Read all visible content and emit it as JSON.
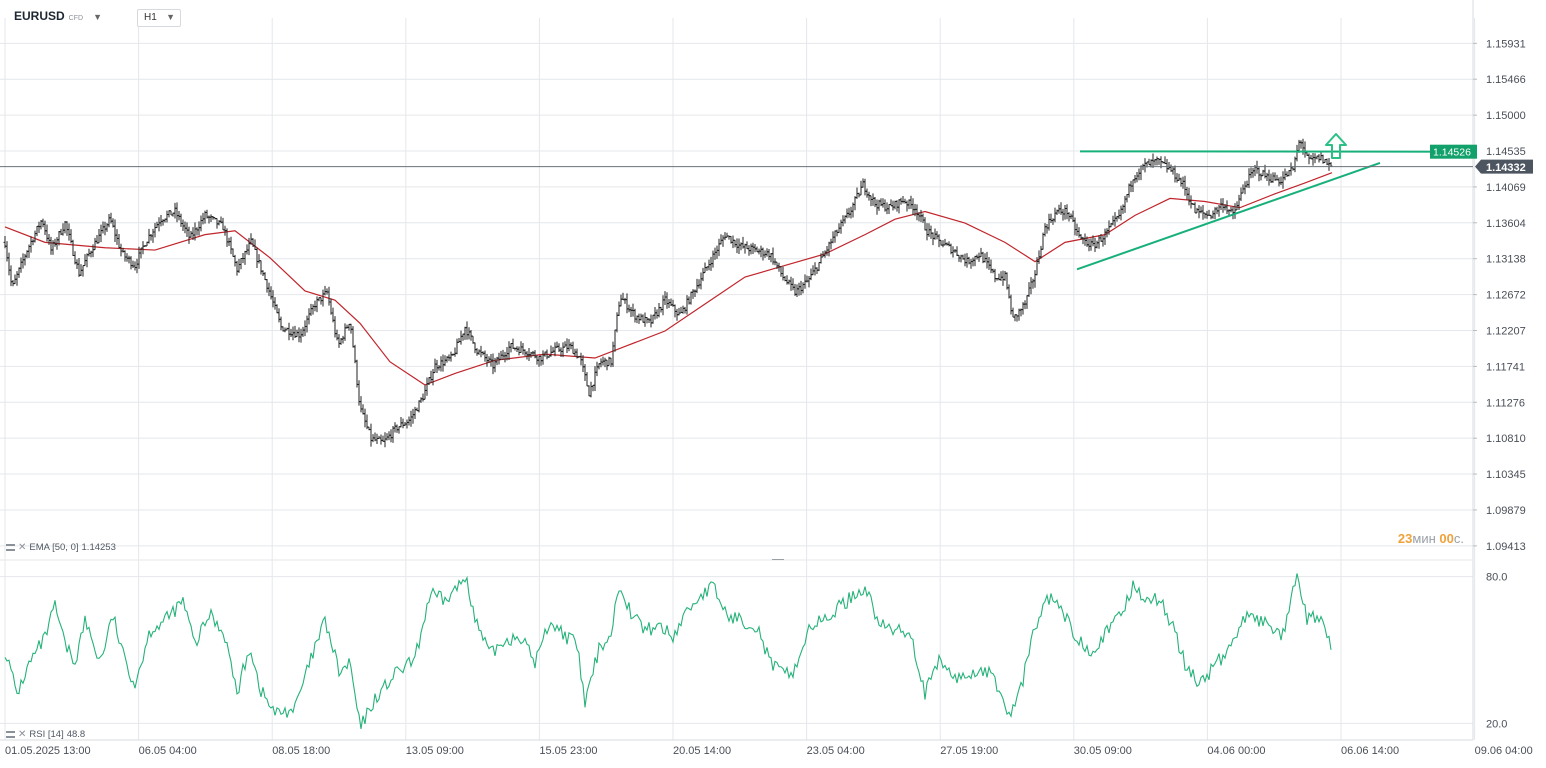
{
  "toolbar": {
    "symbol": "EURUSD",
    "symbol_type": "CFD",
    "timeframe": "H1"
  },
  "indicators": {
    "ema_label": "EMA [50, 0]",
    "ema_value": "1.14253",
    "rsi_label": "RSI [14]",
    "rsi_value": "48.8"
  },
  "countdown": {
    "minutes": "23",
    "min_unit": "мин",
    "seconds": "00",
    "sec_unit": "с."
  },
  "colors": {
    "candle": "#222222",
    "ema": "#c0252b",
    "rsi": "#26b27a",
    "trendline": "#18b07a",
    "arrow": "#2bbf86",
    "badge_resistance": "#12a06b",
    "badge_price": "#4d5561",
    "grid": "#e4e7eb",
    "axis_text": "#4a4f57"
  },
  "icons": {
    "indicator_settings": "indicator-settings-icon",
    "remove_indicator": "remove-indicator-icon",
    "bullish_arrow": "up-arrow-icon"
  },
  "chart_data": [
    {
      "type": "candlestick",
      "title": "EURUSD CFD H1",
      "x_ticks": [
        "01.05.2025 13:00",
        "06.05 04:00",
        "08.05 18:00",
        "13.05 09:00",
        "15.05 23:00",
        "20.05 14:00",
        "23.05 04:00",
        "27.05 19:00",
        "30.05 09:00",
        "04.06 00:00",
        "06.06 14:00",
        "09.06 04:00"
      ],
      "y_ticks": [
        "1.15931",
        "1.15466",
        "1.15000",
        "1.14535",
        "1.14069",
        "1.13604",
        "1.13138",
        "1.12672",
        "1.12207",
        "1.11741",
        "1.11276",
        "1.10810",
        "1.10345",
        "1.09879",
        "1.09413"
      ],
      "ylim": [
        1.0923,
        1.1626
      ],
      "close_path": [
        {
          "t": 0,
          "v": 1.1335
        },
        {
          "t": 7,
          "v": 1.1275
        },
        {
          "t": 22,
          "v": 1.1325
        },
        {
          "t": 37,
          "v": 1.1365
        },
        {
          "t": 46,
          "v": 1.1325
        },
        {
          "t": 60,
          "v": 1.136
        },
        {
          "t": 74,
          "v": 1.1295
        },
        {
          "t": 88,
          "v": 1.133
        },
        {
          "t": 105,
          "v": 1.1365
        },
        {
          "t": 117,
          "v": 1.132
        },
        {
          "t": 130,
          "v": 1.1305
        },
        {
          "t": 140,
          "v": 1.1335
        },
        {
          "t": 155,
          "v": 1.1365
        },
        {
          "t": 170,
          "v": 1.1375
        },
        {
          "t": 185,
          "v": 1.134
        },
        {
          "t": 200,
          "v": 1.137
        },
        {
          "t": 218,
          "v": 1.1355
        },
        {
          "t": 232,
          "v": 1.13
        },
        {
          "t": 246,
          "v": 1.1335
        },
        {
          "t": 262,
          "v": 1.128
        },
        {
          "t": 276,
          "v": 1.1225
        },
        {
          "t": 295,
          "v": 1.1215
        },
        {
          "t": 310,
          "v": 1.1255
        },
        {
          "t": 322,
          "v": 1.127
        },
        {
          "t": 333,
          "v": 1.12
        },
        {
          "t": 345,
          "v": 1.1235
        },
        {
          "t": 355,
          "v": 1.112
        },
        {
          "t": 366,
          "v": 1.108
        },
        {
          "t": 378,
          "v": 1.1075
        },
        {
          "t": 392,
          "v": 1.1095
        },
        {
          "t": 405,
          "v": 1.1105
        },
        {
          "t": 418,
          "v": 1.1135
        },
        {
          "t": 430,
          "v": 1.1175
        },
        {
          "t": 447,
          "v": 1.1185
        },
        {
          "t": 460,
          "v": 1.1225
        },
        {
          "t": 472,
          "v": 1.1195
        },
        {
          "t": 488,
          "v": 1.1175
        },
        {
          "t": 505,
          "v": 1.12
        },
        {
          "t": 520,
          "v": 1.1195
        },
        {
          "t": 535,
          "v": 1.1185
        },
        {
          "t": 550,
          "v": 1.1195
        },
        {
          "t": 565,
          "v": 1.12
        },
        {
          "t": 575,
          "v": 1.1185
        },
        {
          "t": 584,
          "v": 1.114
        },
        {
          "t": 595,
          "v": 1.118
        },
        {
          "t": 606,
          "v": 1.118
        },
        {
          "t": 615,
          "v": 1.1265
        },
        {
          "t": 630,
          "v": 1.124
        },
        {
          "t": 645,
          "v": 1.123
        },
        {
          "t": 660,
          "v": 1.126
        },
        {
          "t": 675,
          "v": 1.124
        },
        {
          "t": 690,
          "v": 1.1275
        },
        {
          "t": 705,
          "v": 1.131
        },
        {
          "t": 720,
          "v": 1.1345
        },
        {
          "t": 735,
          "v": 1.133
        },
        {
          "t": 750,
          "v": 1.1325
        },
        {
          "t": 765,
          "v": 1.132
        },
        {
          "t": 778,
          "v": 1.129
        },
        {
          "t": 790,
          "v": 1.127
        },
        {
          "t": 803,
          "v": 1.1285
        },
        {
          "t": 815,
          "v": 1.131
        },
        {
          "t": 830,
          "v": 1.1345
        },
        {
          "t": 845,
          "v": 1.1375
        },
        {
          "t": 858,
          "v": 1.141
        },
        {
          "t": 870,
          "v": 1.1385
        },
        {
          "t": 885,
          "v": 1.138
        },
        {
          "t": 898,
          "v": 1.139
        },
        {
          "t": 910,
          "v": 1.138
        },
        {
          "t": 922,
          "v": 1.135
        },
        {
          "t": 935,
          "v": 1.1335
        },
        {
          "t": 948,
          "v": 1.1325
        },
        {
          "t": 962,
          "v": 1.131
        },
        {
          "t": 975,
          "v": 1.132
        },
        {
          "t": 990,
          "v": 1.129
        },
        {
          "t": 1000,
          "v": 1.129
        },
        {
          "t": 1008,
          "v": 1.1235
        },
        {
          "t": 1020,
          "v": 1.1255
        },
        {
          "t": 1030,
          "v": 1.1295
        },
        {
          "t": 1040,
          "v": 1.1355
        },
        {
          "t": 1052,
          "v": 1.1375
        },
        {
          "t": 1062,
          "v": 1.1375
        },
        {
          "t": 1075,
          "v": 1.134
        },
        {
          "t": 1088,
          "v": 1.133
        },
        {
          "t": 1100,
          "v": 1.1345
        },
        {
          "t": 1115,
          "v": 1.137
        },
        {
          "t": 1128,
          "v": 1.142
        },
        {
          "t": 1140,
          "v": 1.1435
        },
        {
          "t": 1152,
          "v": 1.144
        },
        {
          "t": 1165,
          "v": 1.143
        },
        {
          "t": 1178,
          "v": 1.141
        },
        {
          "t": 1190,
          "v": 1.1375
        },
        {
          "t": 1205,
          "v": 1.137
        },
        {
          "t": 1218,
          "v": 1.1385
        },
        {
          "t": 1228,
          "v": 1.137
        },
        {
          "t": 1240,
          "v": 1.141
        },
        {
          "t": 1250,
          "v": 1.143
        },
        {
          "t": 1262,
          "v": 1.142
        },
        {
          "t": 1275,
          "v": 1.1415
        },
        {
          "t": 1288,
          "v": 1.143
        },
        {
          "t": 1295,
          "v": 1.147
        },
        {
          "t": 1303,
          "v": 1.144
        },
        {
          "t": 1315,
          "v": 1.1445
        },
        {
          "t": 1327,
          "v": 1.1433
        }
      ],
      "ema": {
        "name": "EMA [50, 0]",
        "last": 1.14253,
        "path": [
          {
            "t": 0,
            "v": 1.1355
          },
          {
            "t": 40,
            "v": 1.1335
          },
          {
            "t": 100,
            "v": 1.1328
          },
          {
            "t": 150,
            "v": 1.1325
          },
          {
            "t": 200,
            "v": 1.1345
          },
          {
            "t": 230,
            "v": 1.135
          },
          {
            "t": 265,
            "v": 1.1315
          },
          {
            "t": 300,
            "v": 1.1272
          },
          {
            "t": 330,
            "v": 1.126
          },
          {
            "t": 355,
            "v": 1.123
          },
          {
            "t": 385,
            "v": 1.118
          },
          {
            "t": 420,
            "v": 1.115
          },
          {
            "t": 450,
            "v": 1.1165
          },
          {
            "t": 490,
            "v": 1.1182
          },
          {
            "t": 540,
            "v": 1.119
          },
          {
            "t": 590,
            "v": 1.1185
          },
          {
            "t": 620,
            "v": 1.12
          },
          {
            "t": 660,
            "v": 1.122
          },
          {
            "t": 700,
            "v": 1.1255
          },
          {
            "t": 740,
            "v": 1.129
          },
          {
            "t": 780,
            "v": 1.1305
          },
          {
            "t": 820,
            "v": 1.132
          },
          {
            "t": 860,
            "v": 1.1345
          },
          {
            "t": 890,
            "v": 1.1365
          },
          {
            "t": 920,
            "v": 1.1375
          },
          {
            "t": 960,
            "v": 1.136
          },
          {
            "t": 1000,
            "v": 1.1335
          },
          {
            "t": 1030,
            "v": 1.131
          },
          {
            "t": 1060,
            "v": 1.1335
          },
          {
            "t": 1100,
            "v": 1.1345
          },
          {
            "t": 1130,
            "v": 1.137
          },
          {
            "t": 1165,
            "v": 1.1392
          },
          {
            "t": 1200,
            "v": 1.1388
          },
          {
            "t": 1235,
            "v": 1.138
          },
          {
            "t": 1270,
            "v": 1.1398
          },
          {
            "t": 1300,
            "v": 1.1412
          },
          {
            "t": 1327,
            "v": 1.14253
          }
        ]
      },
      "resistance_line": {
        "start": {
          "t": 1075,
          "v": 1.1453
        },
        "end": {
          "t": 1455,
          "v": 1.14526
        },
        "label": "1.14526"
      },
      "support_line": {
        "start": {
          "t": 1072,
          "v": 1.13
        },
        "end": {
          "t": 1375,
          "v": 1.1438
        }
      },
      "current_price": {
        "value": 1.14332,
        "label": "1.14332"
      },
      "arrow_direction": "up"
    },
    {
      "type": "line",
      "title": "RSI [14]",
      "y_ticks": [
        "80.0",
        "20.0"
      ],
      "ylim": [
        14.0,
        86.0
      ],
      "last": 48.8,
      "series": [
        {
          "name": "RSI [14]",
          "path": [
            {
              "t": 0,
              "v": 50
            },
            {
              "t": 12,
              "v": 32
            },
            {
              "t": 25,
              "v": 45
            },
            {
              "t": 40,
              "v": 55
            },
            {
              "t": 50,
              "v": 68
            },
            {
              "t": 60,
              "v": 52
            },
            {
              "t": 70,
              "v": 45
            },
            {
              "t": 80,
              "v": 62
            },
            {
              "t": 95,
              "v": 45
            },
            {
              "t": 108,
              "v": 64
            },
            {
              "t": 118,
              "v": 48
            },
            {
              "t": 130,
              "v": 36
            },
            {
              "t": 145,
              "v": 58
            },
            {
              "t": 160,
              "v": 62
            },
            {
              "t": 178,
              "v": 70
            },
            {
              "t": 190,
              "v": 52
            },
            {
              "t": 205,
              "v": 65
            },
            {
              "t": 220,
              "v": 56
            },
            {
              "t": 232,
              "v": 32
            },
            {
              "t": 245,
              "v": 52
            },
            {
              "t": 255,
              "v": 34
            },
            {
              "t": 270,
              "v": 24
            },
            {
              "t": 290,
              "v": 26
            },
            {
              "t": 305,
              "v": 45
            },
            {
              "t": 320,
              "v": 62
            },
            {
              "t": 335,
              "v": 40
            },
            {
              "t": 345,
              "v": 45
            },
            {
              "t": 355,
              "v": 18
            },
            {
              "t": 370,
              "v": 30
            },
            {
              "t": 390,
              "v": 40
            },
            {
              "t": 410,
              "v": 46
            },
            {
              "t": 425,
              "v": 73
            },
            {
              "t": 440,
              "v": 70
            },
            {
              "t": 462,
              "v": 80
            },
            {
              "t": 470,
              "v": 62
            },
            {
              "t": 485,
              "v": 48
            },
            {
              "t": 500,
              "v": 54
            },
            {
              "t": 515,
              "v": 56
            },
            {
              "t": 530,
              "v": 45
            },
            {
              "t": 545,
              "v": 62
            },
            {
              "t": 560,
              "v": 56
            },
            {
              "t": 572,
              "v": 52
            },
            {
              "t": 580,
              "v": 28
            },
            {
              "t": 595,
              "v": 52
            },
            {
              "t": 605,
              "v": 55
            },
            {
              "t": 615,
              "v": 78
            },
            {
              "t": 625,
              "v": 66
            },
            {
              "t": 640,
              "v": 58
            },
            {
              "t": 655,
              "v": 60
            },
            {
              "t": 668,
              "v": 55
            },
            {
              "t": 680,
              "v": 65
            },
            {
              "t": 695,
              "v": 72
            },
            {
              "t": 708,
              "v": 76
            },
            {
              "t": 722,
              "v": 64
            },
            {
              "t": 738,
              "v": 62
            },
            {
              "t": 752,
              "v": 60
            },
            {
              "t": 765,
              "v": 45
            },
            {
              "t": 778,
              "v": 40
            },
            {
              "t": 790,
              "v": 42
            },
            {
              "t": 805,
              "v": 60
            },
            {
              "t": 820,
              "v": 62
            },
            {
              "t": 835,
              "v": 68
            },
            {
              "t": 848,
              "v": 72
            },
            {
              "t": 860,
              "v": 76
            },
            {
              "t": 875,
              "v": 60
            },
            {
              "t": 890,
              "v": 58
            },
            {
              "t": 905,
              "v": 58
            },
            {
              "t": 920,
              "v": 32
            },
            {
              "t": 935,
              "v": 46
            },
            {
              "t": 950,
              "v": 38
            },
            {
              "t": 965,
              "v": 40
            },
            {
              "t": 978,
              "v": 42
            },
            {
              "t": 990,
              "v": 38
            },
            {
              "t": 1005,
              "v": 22
            },
            {
              "t": 1018,
              "v": 38
            },
            {
              "t": 1030,
              "v": 60
            },
            {
              "t": 1045,
              "v": 72
            },
            {
              "t": 1058,
              "v": 65
            },
            {
              "t": 1070,
              "v": 56
            },
            {
              "t": 1085,
              "v": 50
            },
            {
              "t": 1100,
              "v": 56
            },
            {
              "t": 1115,
              "v": 64
            },
            {
              "t": 1128,
              "v": 76
            },
            {
              "t": 1140,
              "v": 72
            },
            {
              "t": 1155,
              "v": 70
            },
            {
              "t": 1168,
              "v": 60
            },
            {
              "t": 1180,
              "v": 44
            },
            {
              "t": 1195,
              "v": 36
            },
            {
              "t": 1210,
              "v": 44
            },
            {
              "t": 1225,
              "v": 50
            },
            {
              "t": 1238,
              "v": 64
            },
            {
              "t": 1252,
              "v": 62
            },
            {
              "t": 1265,
              "v": 60
            },
            {
              "t": 1278,
              "v": 56
            },
            {
              "t": 1292,
              "v": 80
            },
            {
              "t": 1302,
              "v": 62
            },
            {
              "t": 1315,
              "v": 64
            },
            {
              "t": 1327,
              "v": 48.8
            }
          ]
        }
      ]
    }
  ]
}
